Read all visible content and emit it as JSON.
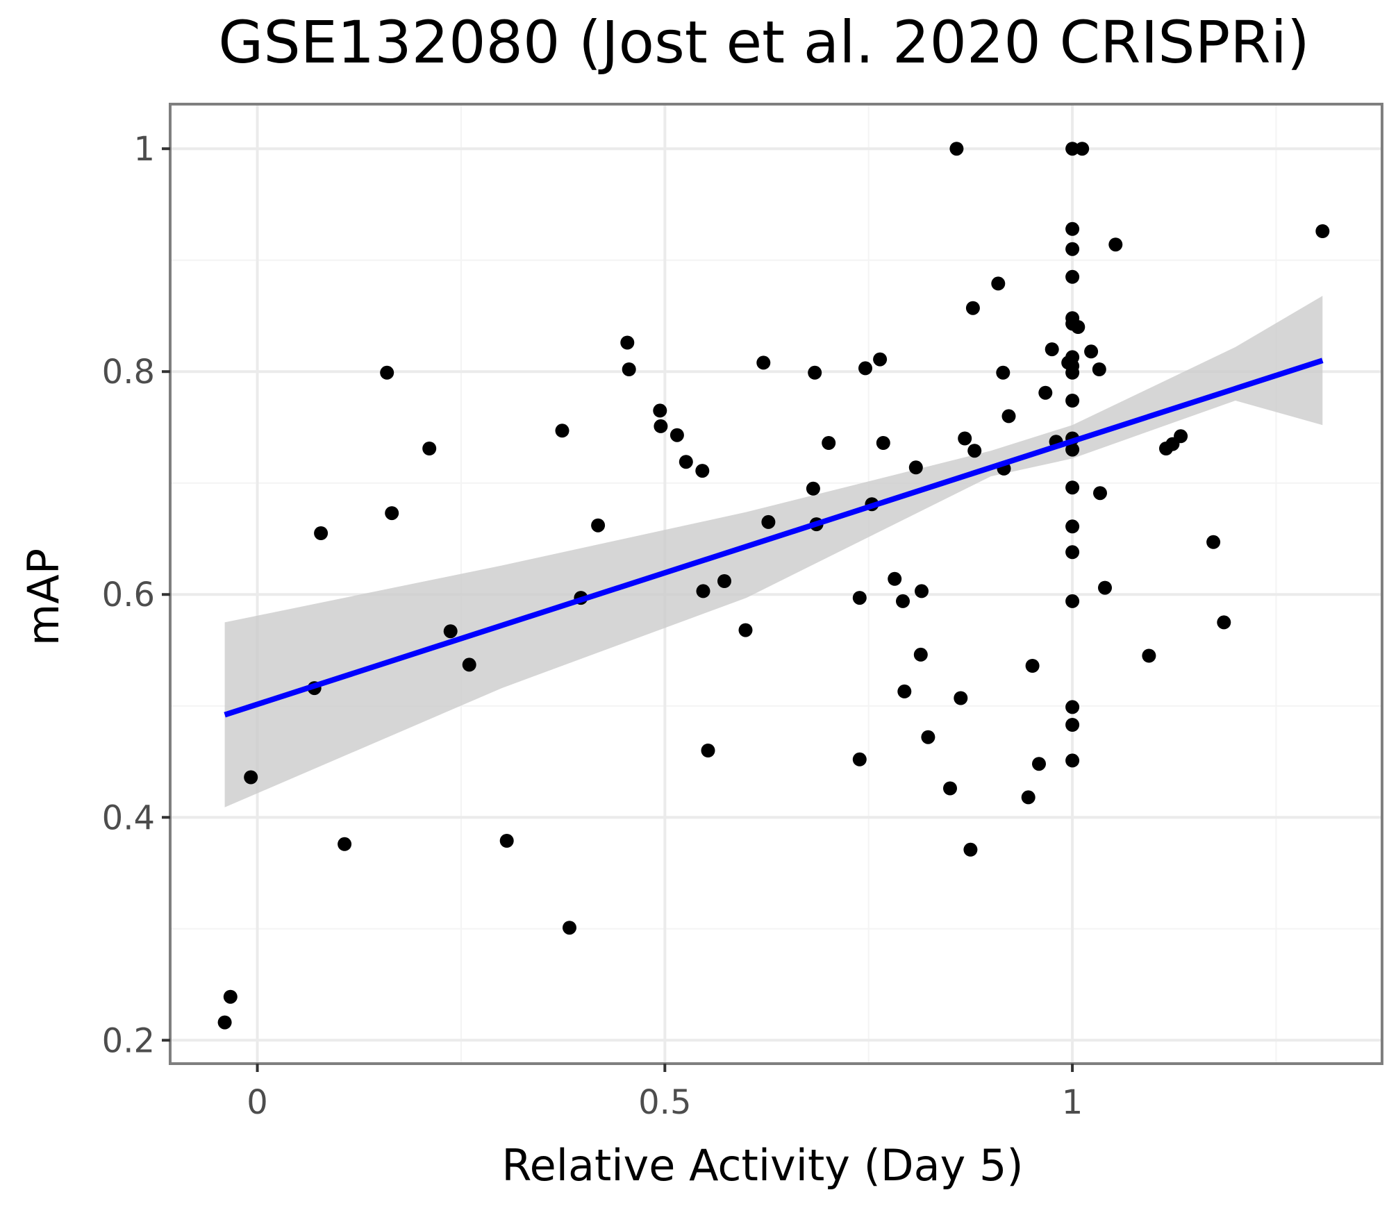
{
  "chart_data": {
    "type": "scatter",
    "title": "GSE132080 (Jost et al. 2020 CRISPRi)",
    "xlabel": "Relative Activity (Day 5)",
    "ylabel": "mAP",
    "xlim": [
      -0.107,
      1.38
    ],
    "ylim": [
      0.179,
      1.04
    ],
    "x_ticks": [
      0,
      0.5,
      1
    ],
    "x_tick_labels": [
      "0",
      "0.5",
      "1"
    ],
    "y_ticks": [
      0.2,
      0.4,
      0.6,
      0.8,
      1.0
    ],
    "y_tick_labels": [
      "0.2",
      "0.4",
      "0.6",
      "0.8",
      "1"
    ],
    "x_minor_ticks": [
      0.25,
      0.75,
      1.25
    ],
    "y_minor_ticks": [
      0.3,
      0.5,
      0.7,
      0.9
    ],
    "grid": true,
    "points": [
      [
        -0.04,
        0.216
      ],
      [
        -0.033,
        0.239
      ],
      [
        -0.008,
        0.436
      ],
      [
        0.07,
        0.516
      ],
      [
        0.078,
        0.655
      ],
      [
        0.107,
        0.376
      ],
      [
        0.159,
        0.799
      ],
      [
        0.165,
        0.673
      ],
      [
        0.211,
        0.731
      ],
      [
        0.237,
        0.567
      ],
      [
        0.26,
        0.537
      ],
      [
        0.306,
        0.379
      ],
      [
        0.374,
        0.747
      ],
      [
        0.383,
        0.301
      ],
      [
        0.397,
        0.597
      ],
      [
        0.418,
        0.662
      ],
      [
        0.454,
        0.826
      ],
      [
        0.456,
        0.802
      ],
      [
        0.494,
        0.765
      ],
      [
        0.495,
        0.751
      ],
      [
        0.515,
        0.743
      ],
      [
        0.526,
        0.719
      ],
      [
        0.546,
        0.711
      ],
      [
        0.547,
        0.603
      ],
      [
        0.573,
        0.612
      ],
      [
        0.553,
        0.46
      ],
      [
        0.599,
        0.568
      ],
      [
        0.621,
        0.808
      ],
      [
        0.627,
        0.665
      ],
      [
        0.682,
        0.695
      ],
      [
        0.684,
        0.799
      ],
      [
        0.686,
        0.663
      ],
      [
        0.701,
        0.736
      ],
      [
        0.739,
        0.597
      ],
      [
        0.739,
        0.452
      ],
      [
        0.746,
        0.803
      ],
      [
        0.754,
        0.681
      ],
      [
        0.764,
        0.811
      ],
      [
        0.768,
        0.736
      ],
      [
        0.782,
        0.614
      ],
      [
        0.792,
        0.594
      ],
      [
        0.794,
        0.513
      ],
      [
        0.808,
        0.714
      ],
      [
        0.814,
        0.546
      ],
      [
        0.815,
        0.603
      ],
      [
        0.823,
        0.472
      ],
      [
        0.85,
        0.426
      ],
      [
        0.858,
        1.0
      ],
      [
        0.863,
        0.507
      ],
      [
        0.868,
        0.74
      ],
      [
        0.875,
        0.371
      ],
      [
        0.878,
        0.857
      ],
      [
        0.88,
        0.729
      ],
      [
        0.909,
        0.879
      ],
      [
        0.915,
        0.799
      ],
      [
        0.916,
        0.713
      ],
      [
        0.922,
        0.76
      ],
      [
        0.946,
        0.418
      ],
      [
        0.951,
        0.536
      ],
      [
        0.959,
        0.448
      ],
      [
        0.967,
        0.781
      ],
      [
        0.975,
        0.82
      ],
      [
        0.98,
        0.737
      ],
      [
        0.995,
        0.808
      ],
      [
        1.0,
        1.0
      ],
      [
        1.012,
        1.0
      ],
      [
        1.0,
        0.928
      ],
      [
        1.0,
        0.91
      ],
      [
        1.0,
        0.885
      ],
      [
        1.0,
        0.848
      ],
      [
        1.0,
        0.843
      ],
      [
        1.007,
        0.84
      ],
      [
        1.0,
        0.813
      ],
      [
        1.0,
        0.805
      ],
      [
        1.0,
        0.799
      ],
      [
        1.0,
        0.774
      ],
      [
        1.0,
        0.74
      ],
      [
        1.0,
        0.73
      ],
      [
        1.0,
        0.696
      ],
      [
        1.0,
        0.661
      ],
      [
        1.0,
        0.638
      ],
      [
        1.0,
        0.594
      ],
      [
        1.0,
        0.499
      ],
      [
        1.0,
        0.483
      ],
      [
        1.0,
        0.451
      ],
      [
        1.023,
        0.818
      ],
      [
        1.033,
        0.802
      ],
      [
        1.034,
        0.691
      ],
      [
        1.04,
        0.606
      ],
      [
        1.053,
        0.914
      ],
      [
        1.094,
        0.545
      ],
      [
        1.115,
        0.731
      ],
      [
        1.123,
        0.735
      ],
      [
        1.133,
        0.742
      ],
      [
        1.173,
        0.647
      ],
      [
        1.186,
        0.575
      ],
      [
        1.307,
        0.926
      ]
    ],
    "fit_line": {
      "type": "linear",
      "x": [
        -0.04,
        1.307
      ],
      "y": [
        0.492,
        0.81
      ]
    },
    "confidence_band": {
      "x": [
        -0.04,
        0.3,
        0.6,
        0.9,
        1.0,
        1.2,
        1.307
      ],
      "upper": [
        0.575,
        0.626,
        0.674,
        0.729,
        0.752,
        0.822,
        0.868
      ],
      "lower": [
        0.409,
        0.516,
        0.597,
        0.706,
        0.722,
        0.774,
        0.752
      ]
    },
    "colors": {
      "points": "#000000",
      "fit_line": "#0000ff",
      "band": "#cccccc",
      "panel_border": "#7f7f7f",
      "grid": "#ebebeb",
      "ticks": "#333333"
    }
  }
}
